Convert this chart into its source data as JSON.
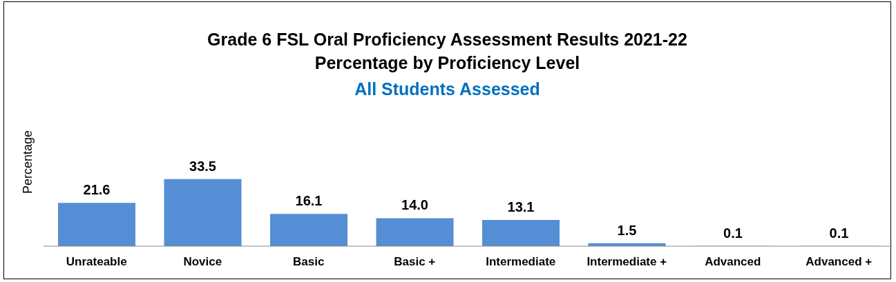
{
  "chart_data": {
    "type": "bar",
    "title": "Grade 6 FSL Oral Proficiency Assessment Results 2021-22\nPercentage by Proficiency Level",
    "subtitle": "All Students Assessed",
    "ylabel": "Percentage",
    "categories": [
      "Unrateable",
      "Novice",
      "Basic",
      "Basic +",
      "Intermediate",
      "Intermediate +",
      "Advanced",
      "Advanced +"
    ],
    "values": [
      21.6,
      33.5,
      16.1,
      14.0,
      13.1,
      1.5,
      0.1,
      0.1
    ],
    "color": "#558ed5",
    "value_labels": [
      "21.6",
      "33.5",
      "16.1",
      "14.0",
      "13.1",
      "1.5",
      "0.1",
      "0.1"
    ]
  }
}
